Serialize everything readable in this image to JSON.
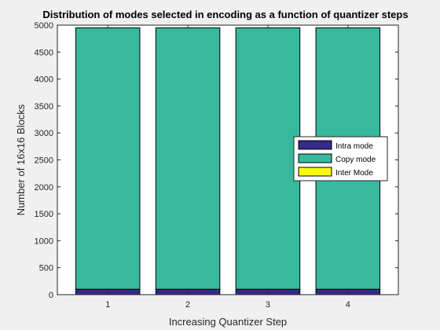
{
  "chart_data": {
    "type": "bar",
    "stacked": true,
    "title": "Distribution of modes selected in encoding as a function of quantizer steps",
    "xlabel": "Increasing Quantizer Step",
    "ylabel": "Number of 16x16 Blocks",
    "categories": [
      "1",
      "2",
      "3",
      "4"
    ],
    "ylim": [
      0,
      5000
    ],
    "yticks": [
      "0",
      "500",
      "1000",
      "1500",
      "2000",
      "2500",
      "3000",
      "3500",
      "4000",
      "4500",
      "5000"
    ],
    "grid": false,
    "legend_position": "right",
    "series": [
      {
        "name": "Intra mode",
        "color": "#352a87",
        "values": [
          100,
          100,
          100,
          100
        ]
      },
      {
        "name": "Copy mode",
        "color": "#38b99e",
        "values": [
          4850,
          4850,
          4850,
          4850
        ]
      },
      {
        "name": "Inter Mode",
        "color": "#f9fb0e",
        "values": [
          0,
          0,
          0,
          0
        ]
      }
    ]
  }
}
